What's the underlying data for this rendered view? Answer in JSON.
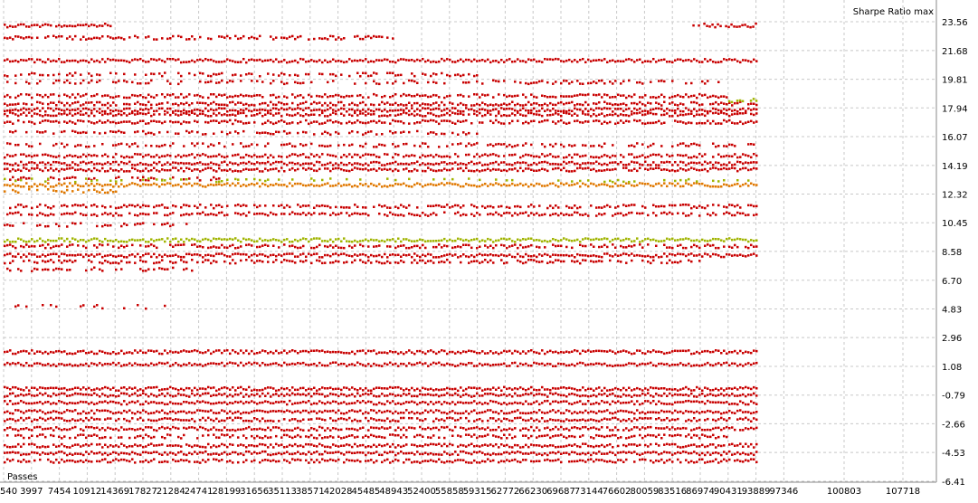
{
  "chart_data": {
    "type": "scatter",
    "title": "Sharpe Ratio max",
    "xlabel": "Passes",
    "ylabel": "",
    "xlim": [
      540,
      110000
    ],
    "ylim": [
      -6.41,
      25.0
    ],
    "x_ticks": [
      "540",
      "3997",
      "7454",
      "10912",
      "14369",
      "17827",
      "21284",
      "24741",
      "28199",
      "31656",
      "35113",
      "38571",
      "42028",
      "45485",
      "48943",
      "52400",
      "55858",
      "59315",
      "62772",
      "66230",
      "69687",
      "73144",
      "76602",
      "80059",
      "83516",
      "86974",
      "90431",
      "93889",
      "97346",
      "100803",
      "107718"
    ],
    "y_ticks": [
      "23.56",
      "21.68",
      "19.81",
      "17.94",
      "16.07",
      "14.19",
      "12.32",
      "10.45",
      "8.58",
      "6.70",
      "4.83",
      "2.96",
      "1.08",
      "-0.79",
      "-2.66",
      "-4.53",
      "-6.41"
    ],
    "grid": true,
    "colors": {
      "main": "#c80000",
      "orange": "#e07800",
      "olive": "#a0b400",
      "grid": "#c8c8c8"
    },
    "series": [
      {
        "color_key": "main",
        "bands": [
          {
            "y": 23.3,
            "x0": 540,
            "x1": 14000,
            "dense": 0.95
          },
          {
            "y": 23.3,
            "x0": 86000,
            "x1": 93889,
            "dense": 0.85
          },
          {
            "y": 22.5,
            "x0": 540,
            "x1": 48943,
            "dense": 0.75
          },
          {
            "y": 21.0,
            "x0": 540,
            "x1": 93889,
            "dense": 1.0
          },
          {
            "y": 20.1,
            "x0": 540,
            "x1": 60000,
            "dense": 0.55
          },
          {
            "y": 19.6,
            "x0": 540,
            "x1": 90431,
            "dense": 0.45
          },
          {
            "y": 18.7,
            "x0": 540,
            "x1": 90431,
            "dense": 0.85
          },
          {
            "y": 18.2,
            "x0": 540,
            "x1": 93889,
            "dense": 0.9
          },
          {
            "y": 17.8,
            "x0": 540,
            "x1": 93889,
            "dense": 1.0
          },
          {
            "y": 17.5,
            "x0": 540,
            "x1": 93889,
            "dense": 0.95
          },
          {
            "y": 17.0,
            "x0": 540,
            "x1": 93889,
            "dense": 0.85
          },
          {
            "y": 16.3,
            "x0": 540,
            "x1": 60000,
            "dense": 0.55
          },
          {
            "y": 15.5,
            "x0": 540,
            "x1": 93889,
            "dense": 0.6
          },
          {
            "y": 14.8,
            "x0": 540,
            "x1": 93889,
            "dense": 0.9
          },
          {
            "y": 14.3,
            "x0": 540,
            "x1": 93889,
            "dense": 1.0
          },
          {
            "y": 13.9,
            "x0": 540,
            "x1": 93889,
            "dense": 0.95
          },
          {
            "y": 13.3,
            "x0": 540,
            "x1": 28199,
            "dense": 0.5
          },
          {
            "y": 11.5,
            "x0": 540,
            "x1": 93889,
            "dense": 0.7
          },
          {
            "y": 11.0,
            "x0": 540,
            "x1": 93889,
            "dense": 0.8
          },
          {
            "y": 10.3,
            "x0": 540,
            "x1": 24741,
            "dense": 0.55
          },
          {
            "y": 8.9,
            "x0": 540,
            "x1": 93889,
            "dense": 0.75
          },
          {
            "y": 8.3,
            "x0": 540,
            "x1": 93889,
            "dense": 1.0
          },
          {
            "y": 7.9,
            "x0": 540,
            "x1": 86974,
            "dense": 0.7
          },
          {
            "y": 7.4,
            "x0": 540,
            "x1": 24741,
            "dense": 0.5
          },
          {
            "y": 4.95,
            "x0": 540,
            "x1": 21284,
            "dense": 0.2
          },
          {
            "y": 2.0,
            "x0": 540,
            "x1": 93889,
            "dense": 1.0
          },
          {
            "y": 1.2,
            "x0": 540,
            "x1": 93889,
            "dense": 1.0
          },
          {
            "y": -0.4,
            "x0": 540,
            "x1": 93889,
            "dense": 1.0
          },
          {
            "y": -0.8,
            "x0": 540,
            "x1": 93889,
            "dense": 1.0
          },
          {
            "y": -1.3,
            "x0": 540,
            "x1": 93889,
            "dense": 1.0
          },
          {
            "y": -1.9,
            "x0": 540,
            "x1": 93889,
            "dense": 1.0
          },
          {
            "y": -2.4,
            "x0": 540,
            "x1": 93889,
            "dense": 0.9
          },
          {
            "y": -3.0,
            "x0": 540,
            "x1": 93889,
            "dense": 0.95
          },
          {
            "y": -3.5,
            "x0": 540,
            "x1": 90431,
            "dense": 0.8
          },
          {
            "y": -4.1,
            "x0": 540,
            "x1": 93889,
            "dense": 0.95
          },
          {
            "y": -4.6,
            "x0": 540,
            "x1": 93889,
            "dense": 1.0
          },
          {
            "y": -5.1,
            "x0": 540,
            "x1": 93889,
            "dense": 0.9
          }
        ]
      },
      {
        "color_key": "orange",
        "bands": [
          {
            "y": 12.9,
            "x0": 540,
            "x1": 93889,
            "dense": 1.0
          },
          {
            "y": 12.5,
            "x0": 540,
            "x1": 14369,
            "dense": 0.5
          }
        ]
      },
      {
        "color_key": "olive",
        "bands": [
          {
            "y": 9.3,
            "x0": 540,
            "x1": 93889,
            "dense": 1.0
          },
          {
            "y": 13.2,
            "x0": 540,
            "x1": 93889,
            "dense": 0.25
          },
          {
            "y": 18.4,
            "x0": 90431,
            "x1": 93889,
            "dense": 0.6
          }
        ]
      }
    ]
  }
}
